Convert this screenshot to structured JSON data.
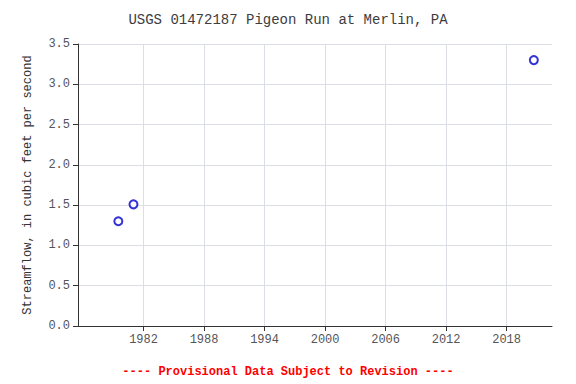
{
  "chart_data": {
    "type": "scatter",
    "title": "USGS 01472187 Pigeon Run at Merlin, PA",
    "ylabel": "Streamflow, in cubic feet per second",
    "x": [
      1979.5,
      1981.0,
      2020.7
    ],
    "values": [
      1.3,
      1.51,
      3.3
    ],
    "color": "#0000cc",
    "marker": "open circle",
    "xlim": [
      1975.5,
      2022.5
    ],
    "ylim": [
      0.0,
      3.5
    ],
    "xticks": [
      1982,
      1988,
      1994,
      2000,
      2006,
      2012,
      2018
    ],
    "yticks": [
      {
        "value": 0.0,
        "label": "0.0"
      },
      0.5,
      {
        "value": 1.0,
        "label": "1.0"
      },
      1.5,
      {
        "value": 2.0,
        "label": "2.0"
      },
      2.5,
      {
        "value": 3.0,
        "label": "3.0"
      },
      3.5
    ],
    "grid": true,
    "annotations": [
      {
        "text": "---- Provisional Data Subject to Revision ----",
        "color": "red"
      }
    ]
  }
}
